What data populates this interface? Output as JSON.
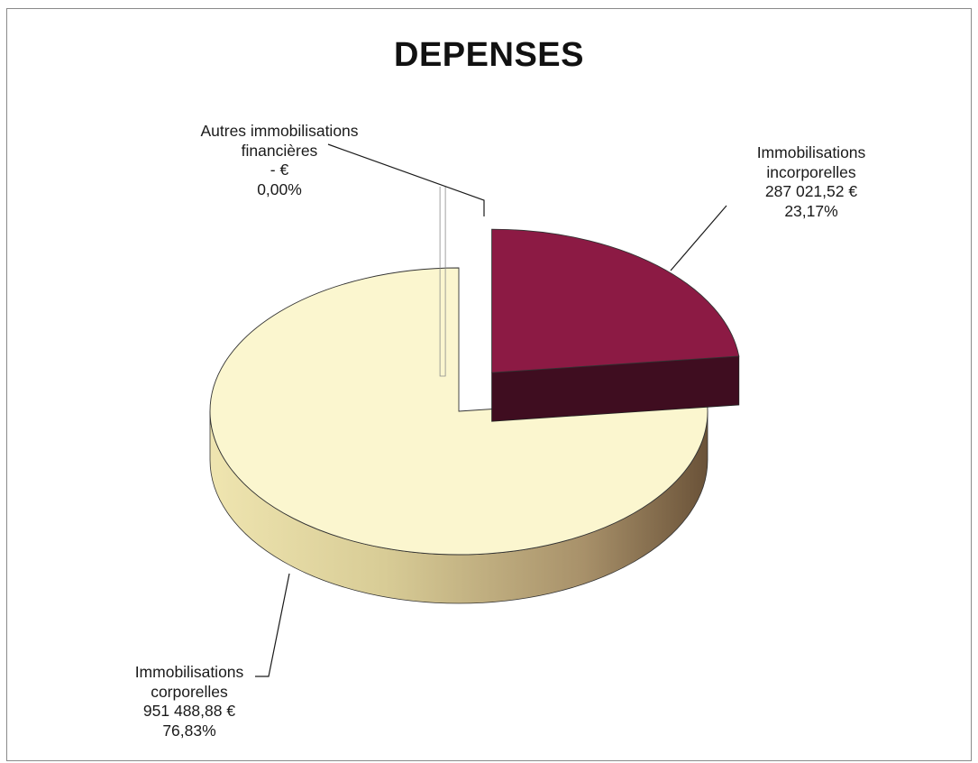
{
  "chart_data": {
    "type": "pie",
    "title": "DEPENSES",
    "slices": [
      {
        "name_lines": [
          "Immobilisations",
          "incorporelles"
        ],
        "amount": "287 021,52 €",
        "percent": "23,17%",
        "value": 287021.52,
        "color": "#8c1a44",
        "exploded": true
      },
      {
        "name_lines": [
          "Immobilisations",
          "corporelles"
        ],
        "amount": "951 488,88 €",
        "percent": "76,83%",
        "value": 951488.88,
        "color": "#fbf6cf",
        "exploded": false
      },
      {
        "name_lines": [
          "Autres immobilisations",
          "financières"
        ],
        "amount": "-   €",
        "percent": "0,00%",
        "value": 0,
        "color": "#ffffff",
        "exploded": true
      }
    ]
  }
}
